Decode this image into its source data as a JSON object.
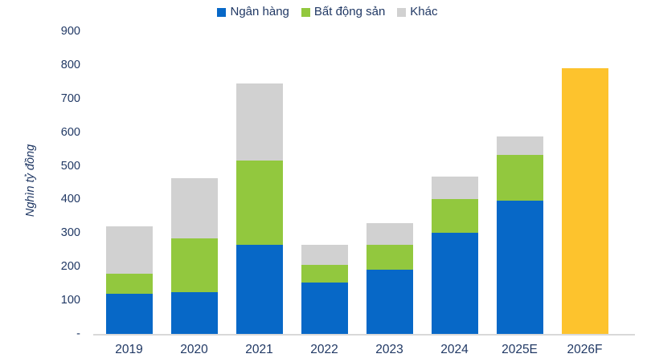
{
  "chart_data": {
    "type": "bar",
    "stacked": true,
    "title": "",
    "xlabel": "",
    "ylabel": "Nghìn tỷ đồng",
    "ylim": [
      0,
      900
    ],
    "grid": false,
    "legend_position": "top-center",
    "text_color": "#203864",
    "axis_line_color": "#D9D9D9",
    "ytick_labels": [
      "900",
      "800",
      "700",
      "600",
      "500",
      "400",
      "300",
      "200",
      "100",
      "-"
    ],
    "ytick_values": [
      900,
      800,
      700,
      600,
      500,
      400,
      300,
      200,
      100,
      0
    ],
    "categories": [
      "2019",
      "2020",
      "2021",
      "2022",
      "2023",
      "2024",
      "2025E",
      "2026F"
    ],
    "series": [
      {
        "name": "Ngân hàng",
        "color": "#0768C7",
        "values": [
          120,
          123,
          265,
          152,
          190,
          300,
          397,
          null
        ]
      },
      {
        "name": "Bất động sản",
        "color": "#92C83E",
        "values": [
          60,
          160,
          250,
          53,
          75,
          100,
          135,
          null
        ]
      },
      {
        "name": "Khác",
        "color": "#D1D1D1",
        "values": [
          140,
          180,
          230,
          61,
          65,
          68,
          55,
          null
        ]
      }
    ],
    "stack_totals": [
      320,
      463,
      745,
      266,
      330,
      468,
      587,
      null
    ],
    "forecast_bar": {
      "category": "2026F",
      "value": 790,
      "color": "#FDC32D"
    }
  }
}
